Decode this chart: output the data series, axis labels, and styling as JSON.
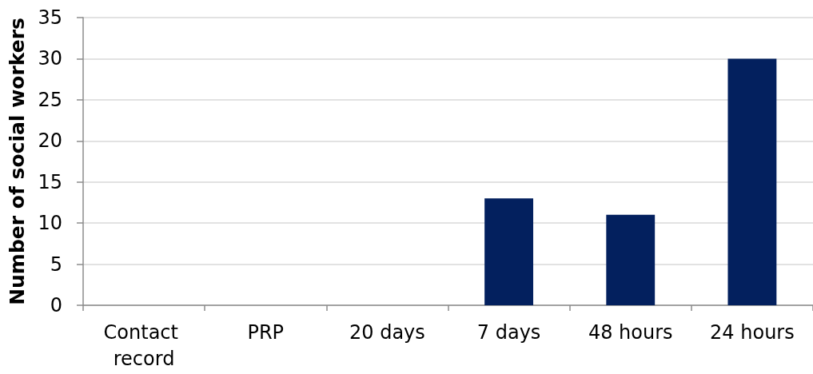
{
  "chart_data": {
    "type": "bar",
    "ylabel": "Number of social workers",
    "categories": [
      "Contact record",
      "PRP",
      "20 days",
      "7 days",
      "48 hours",
      "24 hours"
    ],
    "values": [
      0,
      0,
      0,
      13,
      11,
      30
    ],
    "color": "#03205e",
    "ylim": [
      0,
      35
    ],
    "yticks": [
      0,
      5,
      10,
      15,
      20,
      25,
      30,
      35
    ],
    "grid": "y"
  }
}
